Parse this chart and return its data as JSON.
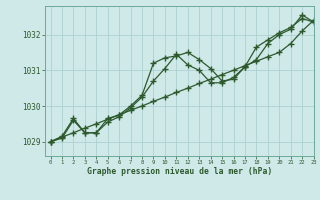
{
  "bg_color": "#cfe8e8",
  "grid_color": "#a8cccc",
  "line_color": "#2d5a2d",
  "title": "Graphe pression niveau de la mer (hPa)",
  "xlim": [
    -0.5,
    23
  ],
  "ylim": [
    1028.6,
    1032.8
  ],
  "yticks": [
    1029,
    1030,
    1031,
    1032
  ],
  "xticks": [
    0,
    1,
    2,
    3,
    4,
    5,
    6,
    7,
    8,
    9,
    10,
    11,
    12,
    13,
    14,
    15,
    16,
    17,
    18,
    19,
    20,
    21,
    22,
    23
  ],
  "line1_x": [
    0,
    1,
    2,
    3,
    4,
    5,
    6,
    7,
    8,
    9,
    10,
    11,
    12,
    13,
    14,
    15,
    16,
    17,
    18,
    19,
    20,
    21,
    22,
    23
  ],
  "line1_y": [
    1029.0,
    1029.13,
    1029.25,
    1029.38,
    1029.5,
    1029.63,
    1029.75,
    1029.88,
    1030.0,
    1030.13,
    1030.25,
    1030.38,
    1030.5,
    1030.63,
    1030.75,
    1030.88,
    1031.0,
    1031.13,
    1031.25,
    1031.38,
    1031.5,
    1031.75,
    1032.1,
    1032.4
  ],
  "line2_x": [
    0,
    1,
    2,
    3,
    4,
    5,
    6,
    7,
    8,
    9,
    10,
    11,
    12,
    13,
    14,
    15,
    16,
    17,
    18,
    19,
    20,
    21,
    22,
    23
  ],
  "line2_y": [
    1029.0,
    1029.15,
    1029.65,
    1029.25,
    1029.25,
    1029.65,
    1029.75,
    1030.0,
    1030.3,
    1031.2,
    1031.35,
    1031.4,
    1031.5,
    1031.3,
    1031.05,
    1030.7,
    1030.75,
    1031.1,
    1031.3,
    1031.75,
    1032.0,
    1032.15,
    1032.55,
    1032.35
  ],
  "line3_x": [
    0,
    1,
    2,
    3,
    4,
    5,
    6,
    7,
    8,
    9,
    10,
    11,
    12,
    13,
    14,
    15,
    16,
    17,
    18,
    19,
    20,
    21,
    22,
    23
  ],
  "line3_y": [
    1029.0,
    1029.1,
    1029.6,
    1029.25,
    1029.25,
    1029.55,
    1029.7,
    1029.95,
    1030.25,
    1030.7,
    1031.05,
    1031.45,
    1031.15,
    1031.0,
    1030.65,
    1030.65,
    1030.8,
    1031.1,
    1031.65,
    1031.85,
    1032.05,
    1032.2,
    1032.45,
    1032.35
  ]
}
